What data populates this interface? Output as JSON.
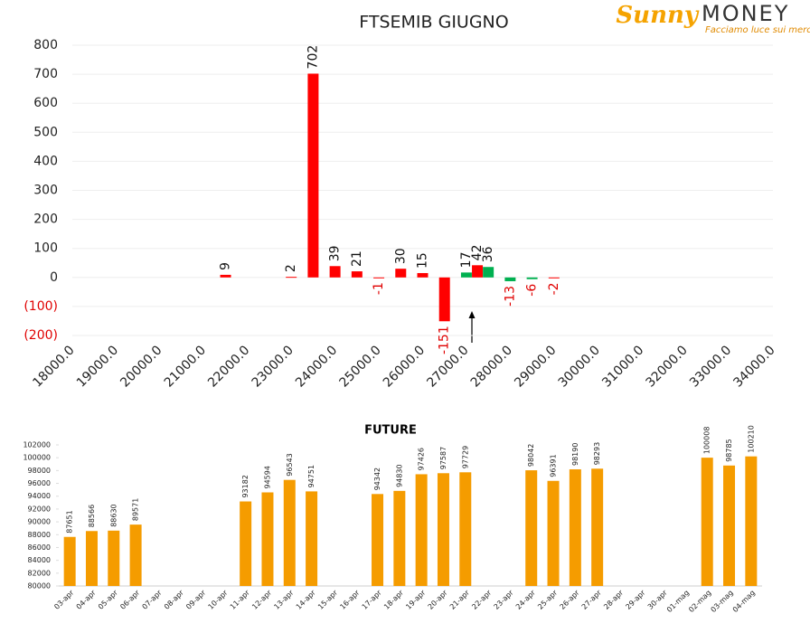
{
  "logo": {
    "brand_script": "Sunny",
    "brand": "MONEY",
    "tagline": "Facciamo luce sui mercati"
  },
  "chart_data": [
    {
      "type": "bar",
      "title": "FTSEMIB GIUGNO",
      "xlim": [
        18000,
        34000
      ],
      "xticks": [
        {
          "value": 18000,
          "label": "18000.0"
        },
        {
          "value": 19000,
          "label": "19000.0"
        },
        {
          "value": 20000,
          "label": "20000.0"
        },
        {
          "value": 21000,
          "label": "21000.0"
        },
        {
          "value": 22000,
          "label": "22000.0"
        },
        {
          "value": 23000,
          "label": "23000.0"
        },
        {
          "value": 24000,
          "label": "24000.0"
        },
        {
          "value": 25000,
          "label": "25000.0"
        },
        {
          "value": 26000,
          "label": "26000.0"
        },
        {
          "value": 27000,
          "label": "27000.0"
        },
        {
          "value": 28000,
          "label": "28000.0"
        },
        {
          "value": 29000,
          "label": "29000.0"
        },
        {
          "value": 30000,
          "label": "30000.0"
        },
        {
          "value": 31000,
          "label": "31000.0"
        },
        {
          "value": 32000,
          "label": "32000.0"
        },
        {
          "value": 33000,
          "label": "33000.0"
        },
        {
          "value": 34000,
          "label": "34000.0"
        }
      ],
      "ylim": [
        -200,
        800
      ],
      "yticks": [
        800,
        700,
        600,
        500,
        400,
        300,
        200,
        100,
        0,
        {
          "value": -100,
          "label": "(100)"
        },
        {
          "value": -200,
          "label": "(200)"
        }
      ],
      "grid": true,
      "series": [
        {
          "color": "#ff0000",
          "x": [
            21500,
            23000,
            23500,
            24000,
            24500,
            25000,
            25500,
            26000,
            26500,
            27250,
            29000
          ],
          "values": [
            9,
            2,
            702,
            39,
            21,
            -1,
            30,
            15,
            -151,
            42,
            -2
          ]
        },
        {
          "color": "#00b050",
          "x": [
            27000,
            27500,
            28000,
            28500
          ],
          "values": [
            17,
            36,
            -13,
            -6
          ]
        }
      ]
    },
    {
      "type": "bar",
      "title": "FUTURE",
      "color": "#f59c00",
      "categories": [
        "03-apr",
        "04-apr",
        "05-apr",
        "06-apr",
        "07-apr",
        "08-apr",
        "09-apr",
        "10-apr",
        "11-apr",
        "12-apr",
        "13-apr",
        "14-apr",
        "15-apr",
        "16-apr",
        "17-apr",
        "18-apr",
        "19-apr",
        "20-apr",
        "21-apr",
        "22-apr",
        "23-apr",
        "24-apr",
        "25-apr",
        "26-apr",
        "27-apr",
        "28-apr",
        "29-apr",
        "30-apr",
        "01-mag",
        "02-mag",
        "03-mag",
        "04-mag"
      ],
      "values": [
        87651,
        88566,
        88630,
        89571,
        null,
        null,
        null,
        null,
        93182,
        94594,
        96543,
        94751,
        null,
        null,
        94342,
        94830,
        97426,
        97587,
        97729,
        null,
        null,
        98042,
        96391,
        98190,
        98293,
        null,
        null,
        null,
        null,
        100008,
        98785,
        100210
      ],
      "ylim": [
        80000,
        102000
      ],
      "yticks": [
        80000,
        82000,
        84000,
        86000,
        88000,
        90000,
        92000,
        94000,
        96000,
        98000,
        100000,
        102000
      ]
    }
  ]
}
